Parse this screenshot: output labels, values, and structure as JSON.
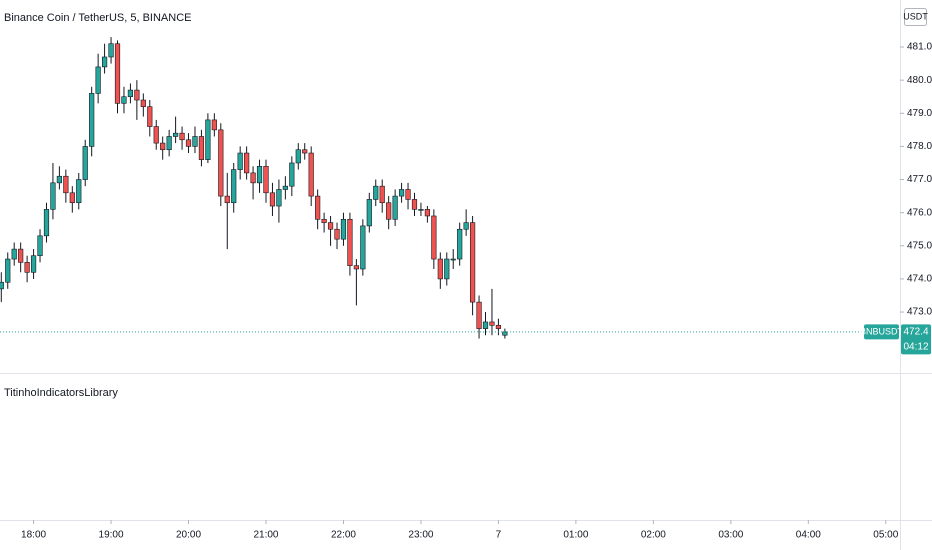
{
  "chart_data": {
    "type": "candlestick",
    "title": "Binance Coin / TetherUS, 5, BINANCE",
    "currency": "USDT",
    "symbol": "BNBUSDT",
    "last_price": 472.4,
    "countdown": "04:12",
    "indicator": "TitinhoIndicatorsLibrary",
    "up_color": "#26a69a",
    "down_color": "#ef5350",
    "x": [
      1055,
      1060,
      1065,
      1070,
      1075,
      1080,
      1085,
      1090,
      1095,
      1100,
      1105,
      1110,
      1115,
      1120,
      1125,
      1130,
      1135,
      1140,
      1145,
      1150,
      1155,
      1160,
      1165,
      1170,
      1175,
      1180,
      1185,
      1190,
      1195,
      1200,
      1205,
      1210,
      1215,
      1220,
      1225,
      1230,
      1235,
      1240,
      1245,
      1250,
      1255,
      1260,
      1265,
      1270,
      1275,
      1280,
      1285,
      1290,
      1295,
      1300,
      1305,
      1310,
      1315,
      1320,
      1325,
      1330,
      1335,
      1340,
      1345,
      1350,
      1355,
      1360,
      1365,
      1370,
      1375,
      1380,
      1385,
      1390,
      1395,
      1400,
      1405,
      1410,
      1415,
      1420,
      1425,
      1430,
      1435,
      1440,
      1445
    ],
    "open": [
      473.7,
      473.9,
      474.6,
      474.9,
      474.5,
      474.2,
      474.7,
      475.3,
      476.1,
      476.9,
      477.1,
      476.6,
      476.3,
      477.0,
      478.0,
      479.6,
      480.4,
      480.7,
      481.1,
      479.3,
      479.5,
      479.7,
      479.4,
      479.2,
      478.6,
      478.1,
      477.9,
      478.3,
      478.4,
      478.2,
      478.0,
      478.3,
      477.6,
      478.8,
      478.5,
      476.5,
      476.3,
      477.3,
      477.8,
      477.2,
      476.9,
      477.4,
      476.6,
      476.2,
      476.7,
      476.8,
      477.5,
      477.9,
      477.8,
      476.5,
      475.8,
      475.7,
      475.5,
      475.2,
      475.8,
      474.4,
      474.3,
      475.6,
      476.4,
      476.8,
      476.3,
      475.8,
      476.5,
      476.7,
      476.4,
      476.1,
      476.1,
      475.9,
      474.6,
      474.0,
      474.6,
      474.6,
      475.5,
      475.7,
      473.3,
      472.5,
      472.7,
      472.6,
      472.3
    ],
    "high": [
      474.2,
      474.8,
      475.1,
      475.1,
      474.7,
      474.9,
      475.5,
      476.3,
      477.5,
      477.4,
      477.3,
      476.8,
      477.2,
      478.2,
      479.8,
      480.8,
      481.1,
      481.3,
      481.2,
      479.8,
      479.9,
      480.0,
      479.6,
      479.4,
      478.8,
      478.3,
      478.5,
      478.9,
      478.6,
      478.4,
      478.6,
      478.5,
      479.0,
      479.0,
      478.7,
      477.2,
      477.5,
      478.0,
      478.0,
      477.4,
      477.6,
      477.6,
      476.9,
      477.0,
      477.1,
      477.7,
      478.1,
      478.1,
      478.0,
      476.7,
      476.0,
      475.9,
      475.7,
      476.0,
      476.0,
      474.6,
      475.8,
      476.6,
      477.0,
      477.0,
      476.5,
      476.7,
      476.9,
      476.9,
      476.6,
      476.3,
      476.2,
      476.1,
      474.8,
      474.8,
      474.9,
      475.7,
      476.1,
      475.9,
      473.5,
      473.0,
      473.7,
      472.8,
      472.5
    ],
    "low": [
      473.3,
      473.7,
      474.4,
      474.2,
      473.9,
      474.0,
      474.5,
      475.1,
      475.8,
      476.7,
      476.3,
      476.0,
      476.1,
      476.8,
      477.7,
      479.3,
      480.2,
      480.5,
      479.0,
      479.0,
      479.3,
      478.8,
      478.9,
      478.3,
      477.9,
      477.6,
      477.7,
      478.1,
      477.9,
      477.8,
      477.8,
      477.4,
      477.5,
      478.3,
      476.2,
      474.9,
      476.0,
      477.0,
      477.0,
      476.4,
      476.6,
      476.3,
      475.9,
      475.7,
      476.4,
      476.5,
      477.3,
      477.6,
      476.2,
      475.5,
      475.4,
      475.0,
      474.9,
      475.0,
      474.1,
      473.2,
      474.1,
      475.4,
      476.2,
      476.0,
      475.5,
      475.6,
      476.3,
      476.1,
      475.9,
      475.9,
      475.7,
      474.3,
      473.7,
      473.8,
      474.3,
      474.4,
      475.3,
      472.9,
      472.2,
      472.3,
      472.3,
      472.3,
      472.2
    ],
    "close": [
      473.9,
      474.6,
      474.9,
      474.5,
      474.2,
      474.7,
      475.3,
      476.1,
      476.9,
      477.1,
      476.6,
      476.3,
      477.0,
      478.0,
      479.6,
      480.4,
      480.7,
      481.1,
      479.3,
      479.5,
      479.7,
      479.4,
      479.2,
      478.6,
      478.1,
      477.9,
      478.3,
      478.4,
      478.2,
      478.0,
      478.3,
      477.6,
      478.8,
      478.5,
      476.5,
      476.3,
      477.3,
      477.8,
      477.2,
      476.9,
      477.4,
      476.6,
      476.2,
      476.7,
      476.8,
      477.5,
      477.9,
      477.8,
      476.5,
      475.8,
      475.7,
      475.5,
      475.2,
      475.8,
      474.4,
      474.3,
      475.6,
      476.4,
      476.8,
      476.3,
      475.8,
      476.5,
      476.7,
      476.4,
      476.1,
      476.1,
      475.9,
      474.6,
      474.0,
      474.6,
      474.6,
      475.5,
      475.7,
      473.3,
      472.5,
      472.7,
      472.6,
      472.5,
      472.4
    ],
    "xlim": [
      1054,
      1751
    ],
    "ylim": [
      471.19,
      482.42
    ],
    "xticks": [
      {
        "value": 1080,
        "label": "18:00"
      },
      {
        "value": 1140,
        "label": "19:00"
      },
      {
        "value": 1200,
        "label": "20:00"
      },
      {
        "value": 1260,
        "label": "21:00"
      },
      {
        "value": 1320,
        "label": "22:00"
      },
      {
        "value": 1380,
        "label": "23:00"
      },
      {
        "value": 1440,
        "label": "7"
      },
      {
        "value": 1500,
        "label": "01:00"
      },
      {
        "value": 1560,
        "label": "02:00"
      },
      {
        "value": 1620,
        "label": "03:00"
      },
      {
        "value": 1680,
        "label": "04:00"
      },
      {
        "value": 1740,
        "label": "05:00"
      }
    ],
    "yticks": [
      {
        "value": 473,
        "label": "473.0"
      },
      {
        "value": 474,
        "label": "474.0"
      },
      {
        "value": 475,
        "label": "475.0"
      },
      {
        "value": 476,
        "label": "476.0"
      },
      {
        "value": 477,
        "label": "477.0"
      },
      {
        "value": 478,
        "label": "478.0"
      },
      {
        "value": 479,
        "label": "479.0"
      },
      {
        "value": 480,
        "label": "480.0"
      },
      {
        "value": 481,
        "label": "481.0"
      }
    ]
  }
}
